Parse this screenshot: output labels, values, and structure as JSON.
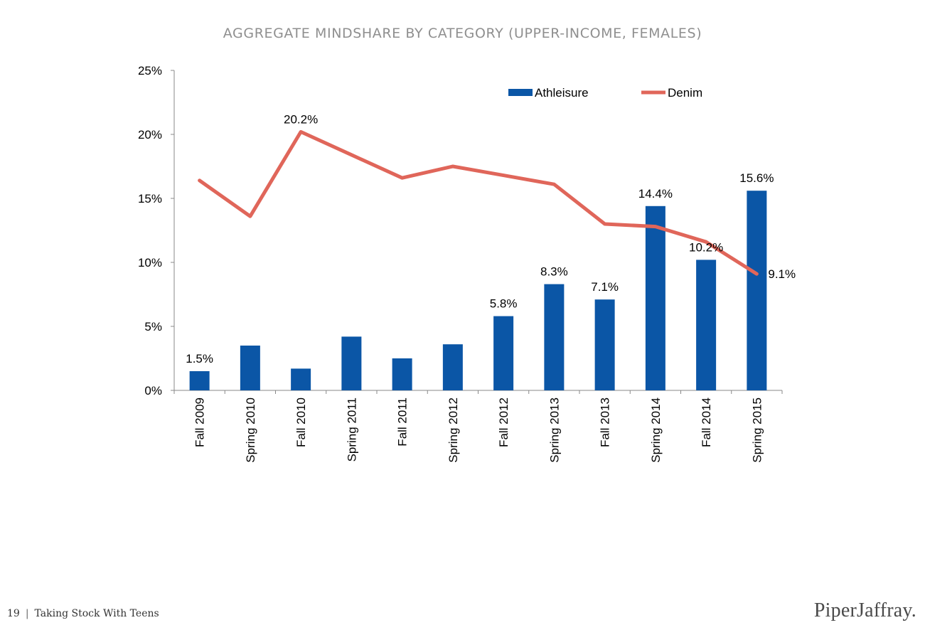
{
  "title": "AGGREGATE MINDSHARE BY CATEGORY (UPPER-INCOME, FEMALES)",
  "footer": {
    "page": "19",
    "separator": "|",
    "text": "Taking Stock With Teens"
  },
  "logo": "PiperJaffray.",
  "colors": {
    "bar": "#0b56a6",
    "line": "#e0665a",
    "axis": "#888888",
    "text": "#000000"
  },
  "chart_data": {
    "type": "bar",
    "title": "AGGREGATE MINDSHARE BY CATEGORY (UPPER-INCOME, FEMALES)",
    "categories": [
      "Fall 2009",
      "Spring 2010",
      "Fall 2010",
      "Spring 2011",
      "Fall 2011",
      "Spring 2012",
      "Fall 2012",
      "Spring 2013",
      "Fall 2013",
      "Spring 2014",
      "Fall 2014",
      "Spring 2015"
    ],
    "ylim": [
      0,
      25
    ],
    "yticks": [
      "0%",
      "5%",
      "10%",
      "15%",
      "20%",
      "25%"
    ],
    "legend_position": "top-right",
    "grid": false,
    "series": [
      {
        "name": "Athleisure",
        "kind": "bar",
        "values": [
          1.5,
          3.5,
          1.7,
          4.2,
          2.5,
          3.6,
          5.8,
          8.3,
          7.1,
          14.4,
          10.2,
          15.6
        ],
        "labels": [
          "1.5%",
          "",
          "",
          "",
          "",
          "",
          "5.8%",
          "8.3%",
          "7.1%",
          "14.4%",
          "10.2%",
          "15.6%"
        ]
      },
      {
        "name": "Denim",
        "kind": "line",
        "values": [
          16.4,
          13.6,
          20.2,
          18.4,
          16.6,
          17.5,
          16.8,
          16.1,
          13.0,
          12.8,
          11.6,
          9.1
        ],
        "labels": [
          "",
          "",
          "20.2%",
          "",
          "",
          "",
          "",
          "",
          "",
          "",
          "",
          "9.1%"
        ]
      }
    ]
  }
}
